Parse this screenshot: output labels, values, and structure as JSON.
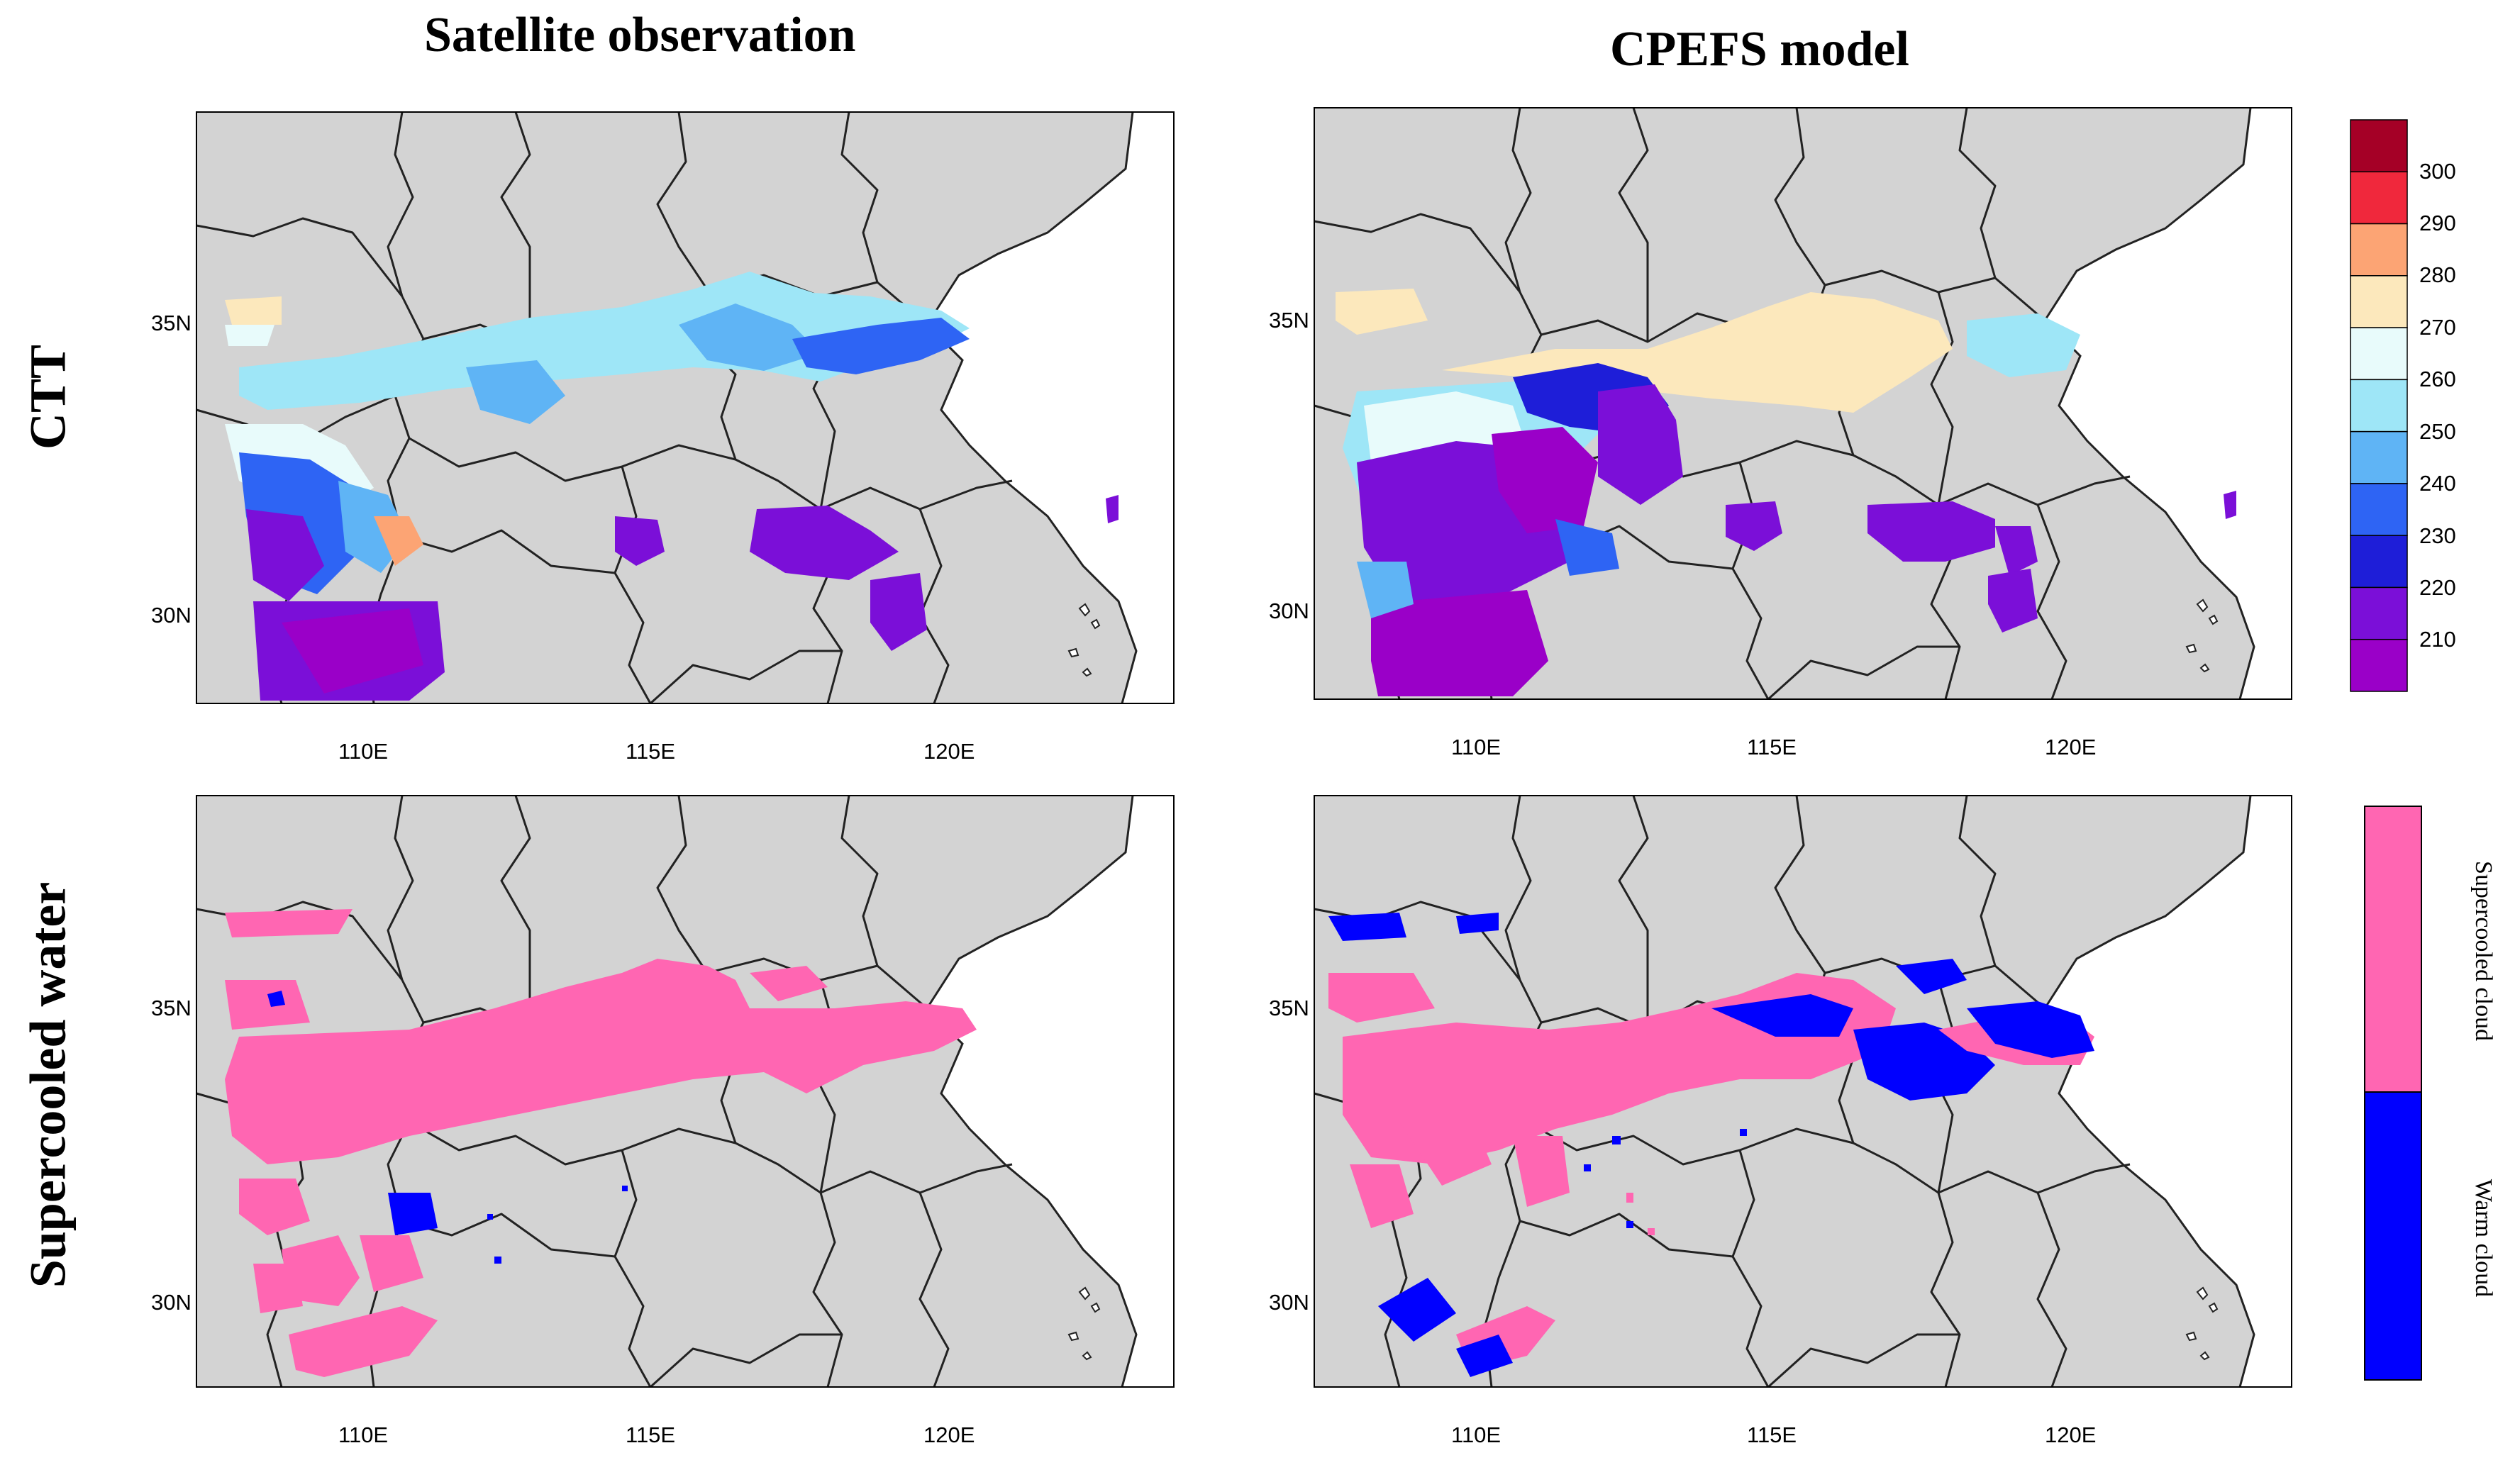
{
  "columns": {
    "left": "Satellite observation",
    "right": "CPEFS model"
  },
  "rows": {
    "top": "CTT",
    "bottom": "Supercooled water"
  },
  "axes": {
    "lon_ticks": [
      "110E",
      "115E",
      "120E"
    ],
    "lat_ticks": [
      "35N",
      "30N"
    ]
  },
  "ctt_colorbar": {
    "labels": [
      "300",
      "290",
      "280",
      "270",
      "260",
      "250",
      "240",
      "230",
      "220",
      "210"
    ],
    "colors": [
      "#a50026",
      "#f0283c",
      "#fca474",
      "#fce8bc",
      "#e8fbfb",
      "#9ee6f7",
      "#5fb4f5",
      "#2e64f4",
      "#1e1ed8",
      "#7b0fd8",
      "#9a00c8"
    ]
  },
  "phase_legend": {
    "supercooled_label": "Supercooled cloud",
    "warm_label": "Warm cloud",
    "supercooled_color": "#ff66b2",
    "warm_color": "#0000ff"
  },
  "map_colors": {
    "land": "#d3d3d3",
    "boundary": "#222222"
  }
}
